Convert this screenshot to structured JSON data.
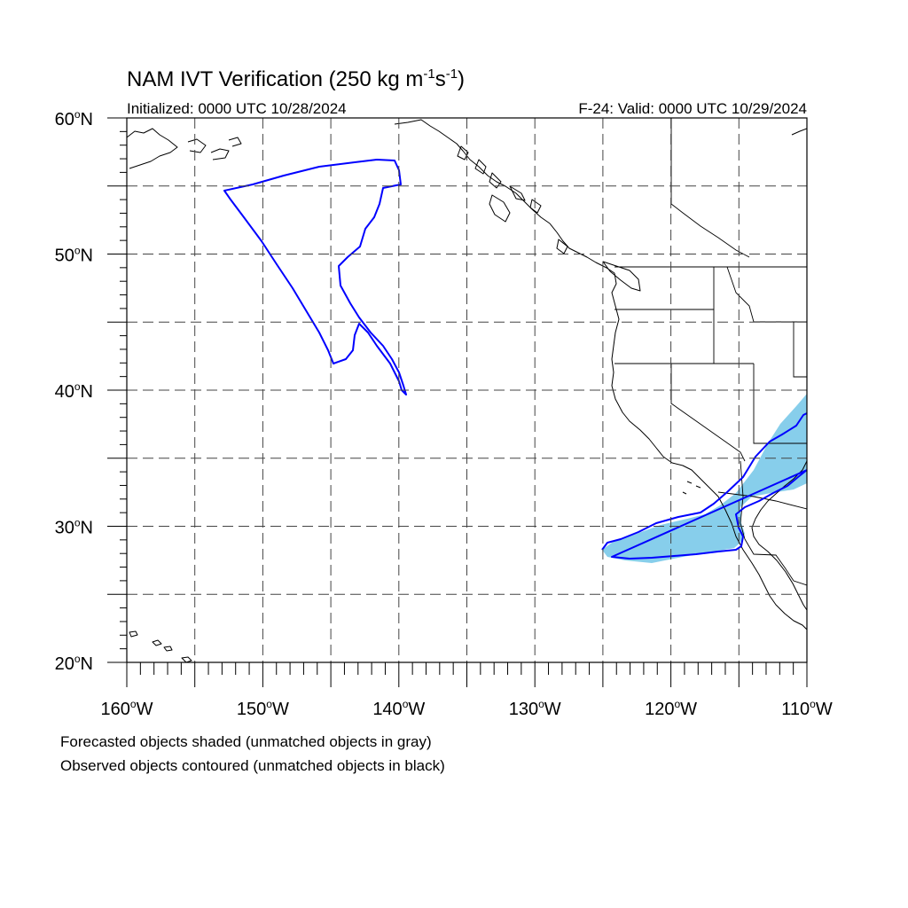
{
  "title": {
    "main": "NAM IVT Verification (250 kg m",
    "sup1": "-1",
    "mid": "s",
    "sup2": "-1",
    "end": ")"
  },
  "initialized": "Initialized: 0000 UTC 10/28/2024",
  "valid": "F-24: Valid: 0000 UTC 10/29/2024",
  "map": {
    "lon_range": [
      -160,
      -110
    ],
    "lat_range": [
      20,
      60
    ],
    "grid": "dashed every 5 degrees",
    "lat_labels": [
      {
        "lat": 60,
        "deg": "60",
        "hem": "N"
      },
      {
        "lat": 50,
        "deg": "50",
        "hem": "N"
      },
      {
        "lat": 40,
        "deg": "40",
        "hem": "N"
      },
      {
        "lat": 30,
        "deg": "30",
        "hem": "N"
      },
      {
        "lat": 20,
        "deg": "20",
        "hem": "N"
      }
    ],
    "lon_labels": [
      {
        "lon": -160,
        "deg": "160",
        "hem": "W"
      },
      {
        "lon": -150,
        "deg": "150",
        "hem": "W"
      },
      {
        "lon": -140,
        "deg": "140",
        "hem": "W"
      },
      {
        "lon": -130,
        "deg": "130",
        "hem": "W"
      },
      {
        "lon": -120,
        "deg": "120",
        "hem": "W"
      },
      {
        "lon": -110,
        "deg": "110",
        "hem": "W"
      }
    ],
    "colors": {
      "forecast_matched_fill": "#87ceeb",
      "observed_matched_contour": "#0000ff"
    },
    "objects": [
      {
        "kind": "observed",
        "matched": true,
        "region": "Gulf of Alaska"
      },
      {
        "kind": "observed",
        "matched": true,
        "region": "Baja California / Southwest US"
      },
      {
        "kind": "forecast",
        "matched": true,
        "region": "Baja California / Southwest US"
      }
    ]
  },
  "captions": {
    "line1": "Forecasted objects shaded (unmatched objects in gray)",
    "line2": "Observed objects contoured (unmatched objects in black)"
  }
}
